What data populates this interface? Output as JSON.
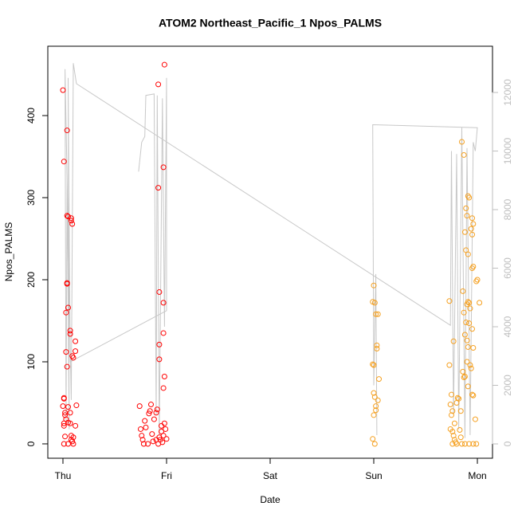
{
  "chart_data": {
    "type": "scatter",
    "title": "ATOM2 Northeast_Pacific_1 Npos_PALMS",
    "x_label": "Date",
    "y_label": "Npos_PALMS",
    "xlim": [
      -0.146,
      4.146
    ],
    "xticks": [
      {
        "value": 0,
        "label": "Thu"
      },
      {
        "value": 1,
        "label": "Fri"
      },
      {
        "value": 2,
        "label": "Sat"
      },
      {
        "value": 3,
        "label": "Sun"
      },
      {
        "value": 4,
        "label": "Mon"
      }
    ],
    "ylim": [
      -17.5,
      484.5
    ],
    "yticks": [
      0,
      100,
      200,
      300,
      400
    ],
    "y2lim": [
      -490,
      13580
    ],
    "y2ticks": [
      0,
      2000,
      4000,
      6000,
      8000,
      10000,
      12000
    ],
    "y2_color": "#bebebe",
    "series": [
      {
        "type": "scatter",
        "color": "#ff0000",
        "x": [
          0.0,
          0.01,
          0.01,
          0.01,
          0.0,
          0.02,
          0.02,
          0.01,
          0.01,
          0.02,
          0.01,
          0.04,
          0.04,
          0.05,
          0.08,
          0.08,
          0.09,
          0.04,
          0.04,
          0.05,
          0.03,
          0.07,
          0.07,
          0.03,
          0.09,
          0.1,
          0.12,
          0.12,
          0.04,
          0.13,
          0.05,
          0.05,
          0.07,
          0.08,
          0.08,
          0.1,
          0.09,
          0.05,
          0.12,
          0.07,
          0.03,
          0.1,
          0.74,
          0.75,
          0.76,
          0.77,
          0.78,
          0.79,
          0.8,
          0.83,
          0.84,
          0.85,
          0.86,
          0.87,
          0.88,
          0.9,
          0.91,
          0.92,
          0.92,
          0.93,
          0.93,
          0.93,
          0.98,
          0.97,
          0.97,
          0.97,
          0.98,
          0.97,
          0.92,
          0.93,
          0.94,
          0.95,
          0.96,
          0.97,
          0.98,
          0.99,
          1.0,
          0.95,
          0.9,
          0.82
        ],
        "values": [
          431,
          344,
          56,
          55,
          46,
          35,
          38,
          25,
          22,
          9,
          0,
          382,
          278,
          277,
          275,
          272,
          268,
          196,
          195,
          166,
          160,
          138,
          134,
          112,
          107,
          105,
          125,
          113,
          94,
          47,
          45,
          26,
          25,
          10,
          5,
          8,
          3,
          0,
          22,
          38,
          30,
          0,
          46,
          18,
          10,
          5,
          0,
          28,
          20,
          37,
          40,
          48,
          12,
          3,
          30,
          38,
          42,
          438,
          312,
          185,
          121,
          103,
          462,
          337,
          172,
          135,
          82,
          68,
          0,
          8,
          5,
          15,
          2,
          10,
          25,
          18,
          6,
          22,
          5,
          0
        ]
      },
      {
        "type": "scatter",
        "color": "#f5a020",
        "x": [
          3.0,
          2.99,
          3.01,
          3.02,
          3.04,
          3.03,
          3.03,
          2.99,
          3.0,
          3.05,
          3.0,
          3.01,
          3.04,
          3.02,
          3.02,
          3.0,
          2.99,
          3.01,
          3.73,
          3.73,
          3.75,
          3.74,
          3.76,
          3.75,
          3.78,
          3.74,
          3.76,
          3.77,
          3.78,
          3.79,
          3.76,
          3.77,
          3.85,
          3.87,
          3.91,
          3.92,
          3.89,
          3.9,
          3.95,
          3.96,
          3.94,
          3.88,
          3.95,
          3.89,
          3.91,
          3.96,
          3.95,
          4.0,
          3.99,
          3.86,
          3.91,
          3.92,
          3.9,
          4.02,
          3.93,
          3.87,
          3.89,
          3.92,
          3.95,
          3.88,
          3.9,
          3.91,
          3.96,
          3.9,
          3.93,
          3.94,
          3.86,
          3.88,
          3.87,
          3.91,
          3.95,
          3.96,
          3.81,
          3.82,
          3.8,
          3.84,
          3.98,
          3.83,
          3.84,
          3.85,
          3.88,
          3.92,
          3.96,
          3.99,
          3.8
        ],
        "values": [
          193,
          173,
          172,
          158,
          158,
          120,
          116,
          97,
          96,
          79,
          62,
          57,
          53,
          46,
          41,
          35,
          6,
          0,
          174,
          96,
          60,
          48,
          40,
          35,
          25,
          18,
          15,
          10,
          5,
          2,
          0,
          125,
          368,
          352,
          302,
          300,
          287,
          278,
          275,
          268,
          262,
          258,
          255,
          236,
          231,
          216,
          214,
          200,
          198,
          186,
          173,
          172,
          170,
          172,
          165,
          160,
          148,
          147,
          140,
          133,
          126,
          118,
          117,
          100,
          96,
          92,
          88,
          82,
          81,
          70,
          60,
          59,
          56,
          55,
          50,
          40,
          30,
          17,
          8,
          0,
          0,
          0,
          0,
          0,
          0
        ]
      },
      {
        "type": "line",
        "axis": "y2",
        "color": "#c8c8c8",
        "x": [
          0.73,
          0.76,
          0.79,
          0.8,
          0.88,
          0.9,
          0.91,
          0.93,
          0.96,
          0.98,
          1.0,
          1.0,
          0.07,
          0.05,
          0.06,
          0.04,
          0.03,
          0.02,
          0.08,
          0.1,
          0.13,
          3.74,
          3.75,
          3.77,
          3.8,
          3.82,
          3.85,
          3.88,
          3.9,
          3.93,
          3.96,
          3.98,
          4.0,
          2.99,
          3.0,
          3.02,
          3.03
        ],
        "values": [
          9300,
          10300,
          10500,
          11900,
          11950,
          1000,
          11900,
          300,
          11800,
          4000,
          12500,
          4550,
          2800,
          12500,
          500,
          9000,
          800,
          12800,
          1500,
          13000,
          12300,
          4050,
          10000,
          1000,
          9900,
          500,
          10800,
          200,
          10100,
          300,
          10300,
          10000,
          10800,
          10900,
          2000,
          5800,
          300
        ]
      }
    ]
  }
}
